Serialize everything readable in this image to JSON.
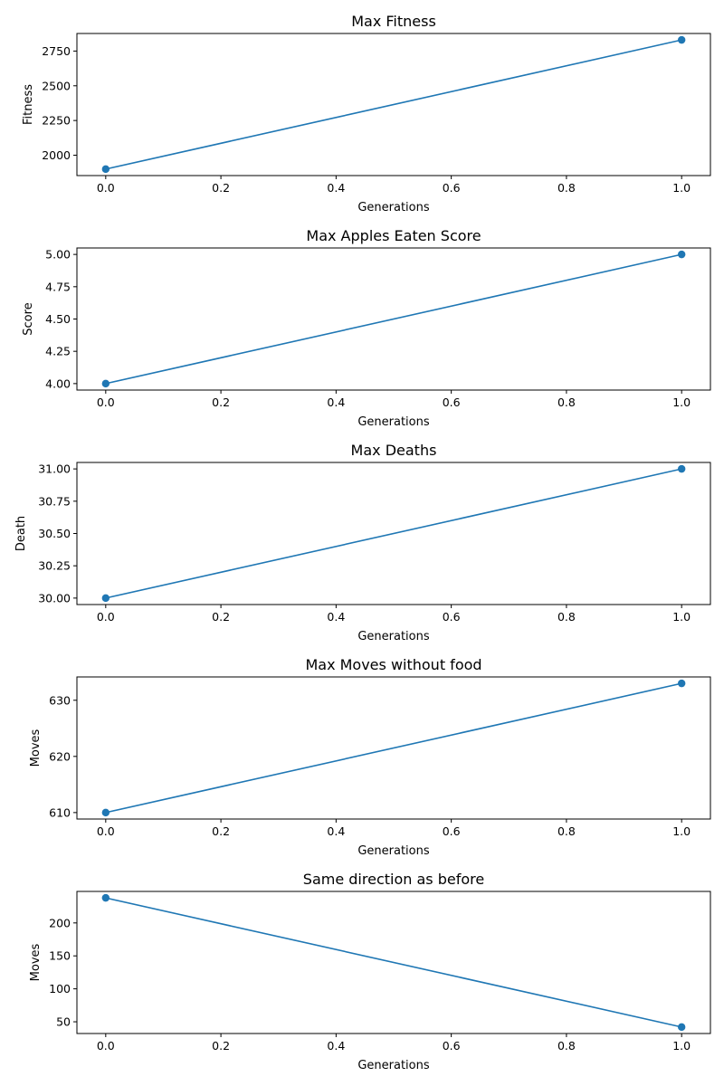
{
  "chart_data": [
    {
      "type": "line",
      "title": "Max Fitness",
      "xlabel": "Generations",
      "ylabel": "Fitness",
      "x": [
        0,
        1
      ],
      "y": [
        1900,
        2830
      ],
      "xlim": [
        -0.05,
        1.05
      ],
      "ylim": [
        1853.5,
        2876.5
      ],
      "xticks": [
        0,
        0.2,
        0.4,
        0.6,
        0.8,
        1
      ],
      "xtick_labels": [
        "0.0",
        "0.2",
        "0.4",
        "0.6",
        "0.8",
        "1.0"
      ],
      "yticks": [
        2000,
        2250,
        2500,
        2750
      ],
      "ytick_labels": [
        "2000",
        "2250",
        "2500",
        "2750"
      ],
      "marker": "circle",
      "color": "#1f77b4",
      "grid": false
    },
    {
      "type": "line",
      "title": "Max Apples Eaten Score",
      "xlabel": "Generations",
      "ylabel": "Score",
      "x": [
        0,
        1
      ],
      "y": [
        4,
        5
      ],
      "xlim": [
        -0.05,
        1.05
      ],
      "ylim": [
        3.95,
        5.05
      ],
      "xticks": [
        0,
        0.2,
        0.4,
        0.6,
        0.8,
        1
      ],
      "xtick_labels": [
        "0.0",
        "0.2",
        "0.4",
        "0.6",
        "0.8",
        "1.0"
      ],
      "yticks": [
        4,
        4.25,
        4.5,
        4.75,
        5
      ],
      "ytick_labels": [
        "4.00",
        "4.25",
        "4.50",
        "4.75",
        "5.00"
      ],
      "marker": "circle",
      "color": "#1f77b4",
      "grid": false
    },
    {
      "type": "line",
      "title": "Max Deaths",
      "xlabel": "Generations",
      "ylabel": "Death",
      "x": [
        0,
        1
      ],
      "y": [
        30,
        31
      ],
      "xlim": [
        -0.05,
        1.05
      ],
      "ylim": [
        29.95,
        31.05
      ],
      "xticks": [
        0,
        0.2,
        0.4,
        0.6,
        0.8,
        1
      ],
      "xtick_labels": [
        "0.0",
        "0.2",
        "0.4",
        "0.6",
        "0.8",
        "1.0"
      ],
      "yticks": [
        30,
        30.25,
        30.5,
        30.75,
        31
      ],
      "ytick_labels": [
        "30.00",
        "30.25",
        "30.50",
        "30.75",
        "31.00"
      ],
      "marker": "circle",
      "color": "#1f77b4",
      "grid": false
    },
    {
      "type": "line",
      "title": "Max Moves without food",
      "xlabel": "Generations",
      "ylabel": "Moves",
      "x": [
        0,
        1
      ],
      "y": [
        610,
        633
      ],
      "xlim": [
        -0.05,
        1.05
      ],
      "ylim": [
        608.85,
        634.15
      ],
      "xticks": [
        0,
        0.2,
        0.4,
        0.6,
        0.8,
        1
      ],
      "xtick_labels": [
        "0.0",
        "0.2",
        "0.4",
        "0.6",
        "0.8",
        "1.0"
      ],
      "yticks": [
        610,
        620,
        630
      ],
      "ytick_labels": [
        "610",
        "620",
        "630"
      ],
      "marker": "circle",
      "color": "#1f77b4",
      "grid": false
    },
    {
      "type": "line",
      "title": "Same direction as before",
      "xlabel": "Generations",
      "ylabel": "Moves",
      "x": [
        0,
        1
      ],
      "y": [
        238,
        42
      ],
      "xlim": [
        -0.05,
        1.05
      ],
      "ylim": [
        32.2,
        247.8
      ],
      "xticks": [
        0,
        0.2,
        0.4,
        0.6,
        0.8,
        1
      ],
      "xtick_labels": [
        "0.0",
        "0.2",
        "0.4",
        "0.6",
        "0.8",
        "1.0"
      ],
      "yticks": [
        50,
        100,
        150,
        200
      ],
      "ytick_labels": [
        "50",
        "100",
        "150",
        "200"
      ],
      "marker": "circle",
      "color": "#1f77b4",
      "grid": false
    }
  ]
}
